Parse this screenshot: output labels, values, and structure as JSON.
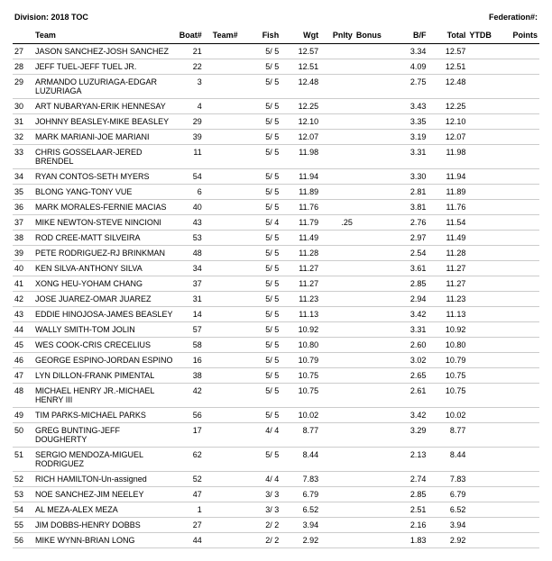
{
  "header": {
    "division_label": "Division:",
    "division_value": "2018 TOC",
    "federation_label": "Federation#:"
  },
  "columns": [
    "",
    "Team",
    "Boat#",
    "Team#",
    "Fish",
    "Wgt",
    "Pnlty",
    "Bonus",
    "B/F",
    "Total",
    "YTDB",
    "Points"
  ],
  "rows": [
    {
      "rank": "27",
      "team": "JASON SANCHEZ-JOSH SANCHEZ",
      "boat": "21",
      "teamn": "",
      "fish": "5/ 5",
      "wgt": "12.57",
      "pnlty": "",
      "bonus": "",
      "bf": "3.34",
      "total": "12.57",
      "ytdb": "",
      "pts": ""
    },
    {
      "rank": "28",
      "team": "JEFF TUEL-JEFF TUEL JR.",
      "boat": "22",
      "teamn": "",
      "fish": "5/ 5",
      "wgt": "12.51",
      "pnlty": "",
      "bonus": "",
      "bf": "4.09",
      "total": "12.51",
      "ytdb": "",
      "pts": ""
    },
    {
      "rank": "29",
      "team": "ARMANDO LUZURIAGA-EDGAR LUZURIAGA",
      "boat": "3",
      "teamn": "",
      "fish": "5/ 5",
      "wgt": "12.48",
      "pnlty": "",
      "bonus": "",
      "bf": "2.75",
      "total": "12.48",
      "ytdb": "",
      "pts": ""
    },
    {
      "rank": "30",
      "team": "ART NUBARYAN-ERIK HENNESAY",
      "boat": "4",
      "teamn": "",
      "fish": "5/ 5",
      "wgt": "12.25",
      "pnlty": "",
      "bonus": "",
      "bf": "3.43",
      "total": "12.25",
      "ytdb": "",
      "pts": ""
    },
    {
      "rank": "31",
      "team": "JOHNNY BEASLEY-MIKE BEASLEY",
      "boat": "29",
      "teamn": "",
      "fish": "5/ 5",
      "wgt": "12.10",
      "pnlty": "",
      "bonus": "",
      "bf": "3.35",
      "total": "12.10",
      "ytdb": "",
      "pts": ""
    },
    {
      "rank": "32",
      "team": "MARK MARIANI-JOE MARIANI",
      "boat": "39",
      "teamn": "",
      "fish": "5/ 5",
      "wgt": "12.07",
      "pnlty": "",
      "bonus": "",
      "bf": "3.19",
      "total": "12.07",
      "ytdb": "",
      "pts": ""
    },
    {
      "rank": "33",
      "team": "CHRIS GOSSELAAR-JERED BRENDEL",
      "boat": "11",
      "teamn": "",
      "fish": "5/ 5",
      "wgt": "11.98",
      "pnlty": "",
      "bonus": "",
      "bf": "3.31",
      "total": "11.98",
      "ytdb": "",
      "pts": ""
    },
    {
      "rank": "34",
      "team": "RYAN CONTOS-SETH MYERS",
      "boat": "54",
      "teamn": "",
      "fish": "5/ 5",
      "wgt": "11.94",
      "pnlty": "",
      "bonus": "",
      "bf": "3.30",
      "total": "11.94",
      "ytdb": "",
      "pts": ""
    },
    {
      "rank": "35",
      "team": "BLONG YANG-TONY VUE",
      "boat": "6",
      "teamn": "",
      "fish": "5/ 5",
      "wgt": "11.89",
      "pnlty": "",
      "bonus": "",
      "bf": "2.81",
      "total": "11.89",
      "ytdb": "",
      "pts": ""
    },
    {
      "rank": "36",
      "team": "MARK MORALES-FERNIE MACIAS",
      "boat": "40",
      "teamn": "",
      "fish": "5/ 5",
      "wgt": "11.76",
      "pnlty": "",
      "bonus": "",
      "bf": "3.81",
      "total": "11.76",
      "ytdb": "",
      "pts": ""
    },
    {
      "rank": "37",
      "team": "MIKE NEWTON-STEVE NINCIONI",
      "boat": "43",
      "teamn": "",
      "fish": "5/ 4",
      "wgt": "11.79",
      "pnlty": ".25",
      "bonus": "",
      "bf": "2.76",
      "total": "11.54",
      "ytdb": "",
      "pts": ""
    },
    {
      "rank": "38",
      "team": "ROD CREE-MATT SILVEIRA",
      "boat": "53",
      "teamn": "",
      "fish": "5/ 5",
      "wgt": "11.49",
      "pnlty": "",
      "bonus": "",
      "bf": "2.97",
      "total": "11.49",
      "ytdb": "",
      "pts": ""
    },
    {
      "rank": "39",
      "team": "PETE RODRIGUEZ-RJ BRINKMAN",
      "boat": "48",
      "teamn": "",
      "fish": "5/ 5",
      "wgt": "11.28",
      "pnlty": "",
      "bonus": "",
      "bf": "2.54",
      "total": "11.28",
      "ytdb": "",
      "pts": ""
    },
    {
      "rank": "40",
      "team": "KEN SILVA-ANTHONY SILVA",
      "boat": "34",
      "teamn": "",
      "fish": "5/ 5",
      "wgt": "11.27",
      "pnlty": "",
      "bonus": "",
      "bf": "3.61",
      "total": "11.27",
      "ytdb": "",
      "pts": ""
    },
    {
      "rank": "41",
      "team": "XONG HEU-YOHAM CHANG",
      "boat": "37",
      "teamn": "",
      "fish": "5/ 5",
      "wgt": "11.27",
      "pnlty": "",
      "bonus": "",
      "bf": "2.85",
      "total": "11.27",
      "ytdb": "",
      "pts": ""
    },
    {
      "rank": "42",
      "team": "JOSE JUAREZ-OMAR JUAREZ",
      "boat": "31",
      "teamn": "",
      "fish": "5/ 5",
      "wgt": "11.23",
      "pnlty": "",
      "bonus": "",
      "bf": "2.94",
      "total": "11.23",
      "ytdb": "",
      "pts": ""
    },
    {
      "rank": "43",
      "team": "EDDIE HINOJOSA-JAMES BEASLEY",
      "boat": "14",
      "teamn": "",
      "fish": "5/ 5",
      "wgt": "11.13",
      "pnlty": "",
      "bonus": "",
      "bf": "3.42",
      "total": "11.13",
      "ytdb": "",
      "pts": ""
    },
    {
      "rank": "44",
      "team": "WALLY SMITH-TOM JOLIN",
      "boat": "57",
      "teamn": "",
      "fish": "5/ 5",
      "wgt": "10.92",
      "pnlty": "",
      "bonus": "",
      "bf": "3.31",
      "total": "10.92",
      "ytdb": "",
      "pts": ""
    },
    {
      "rank": "45",
      "team": "WES COOK-CRIS CRECELIUS",
      "boat": "58",
      "teamn": "",
      "fish": "5/ 5",
      "wgt": "10.80",
      "pnlty": "",
      "bonus": "",
      "bf": "2.60",
      "total": "10.80",
      "ytdb": "",
      "pts": ""
    },
    {
      "rank": "46",
      "team": "GEORGE ESPINO-JORDAN ESPINO",
      "boat": "16",
      "teamn": "",
      "fish": "5/ 5",
      "wgt": "10.79",
      "pnlty": "",
      "bonus": "",
      "bf": "3.02",
      "total": "10.79",
      "ytdb": "",
      "pts": ""
    },
    {
      "rank": "47",
      "team": "LYN DILLON-FRANK PIMENTAL",
      "boat": "38",
      "teamn": "",
      "fish": "5/ 5",
      "wgt": "10.75",
      "pnlty": "",
      "bonus": "",
      "bf": "2.65",
      "total": "10.75",
      "ytdb": "",
      "pts": ""
    },
    {
      "rank": "48",
      "team": "MICHAEL HENRY JR.-MICHAEL HENRY III",
      "boat": "42",
      "teamn": "",
      "fish": "5/ 5",
      "wgt": "10.75",
      "pnlty": "",
      "bonus": "",
      "bf": "2.61",
      "total": "10.75",
      "ytdb": "",
      "pts": ""
    },
    {
      "rank": "49",
      "team": "TIM PARKS-MICHAEL PARKS",
      "boat": "56",
      "teamn": "",
      "fish": "5/ 5",
      "wgt": "10.02",
      "pnlty": "",
      "bonus": "",
      "bf": "3.42",
      "total": "10.02",
      "ytdb": "",
      "pts": ""
    },
    {
      "rank": "50",
      "team": "GREG BUNTING-JEFF DOUGHERTY",
      "boat": "17",
      "teamn": "",
      "fish": "4/ 4",
      "wgt": "8.77",
      "pnlty": "",
      "bonus": "",
      "bf": "3.29",
      "total": "8.77",
      "ytdb": "",
      "pts": ""
    },
    {
      "rank": "51",
      "team": "SERGIO MENDOZA-MIGUEL RODRIGUEZ",
      "boat": "62",
      "teamn": "",
      "fish": "5/ 5",
      "wgt": "8.44",
      "pnlty": "",
      "bonus": "",
      "bf": "2.13",
      "total": "8.44",
      "ytdb": "",
      "pts": ""
    },
    {
      "rank": "52",
      "team": "RICH HAMILTON-Un-assigned",
      "boat": "52",
      "teamn": "",
      "fish": "4/ 4",
      "wgt": "7.83",
      "pnlty": "",
      "bonus": "",
      "bf": "2.74",
      "total": "7.83",
      "ytdb": "",
      "pts": ""
    },
    {
      "rank": "53",
      "team": "NOE SANCHEZ-JIM NEELEY",
      "boat": "47",
      "teamn": "",
      "fish": "3/ 3",
      "wgt": "6.79",
      "pnlty": "",
      "bonus": "",
      "bf": "2.85",
      "total": "6.79",
      "ytdb": "",
      "pts": ""
    },
    {
      "rank": "54",
      "team": "AL MEZA-ALEX MEZA",
      "boat": "1",
      "teamn": "",
      "fish": "3/ 3",
      "wgt": "6.52",
      "pnlty": "",
      "bonus": "",
      "bf": "2.51",
      "total": "6.52",
      "ytdb": "",
      "pts": ""
    },
    {
      "rank": "55",
      "team": "JIM DOBBS-HENRY DOBBS",
      "boat": "27",
      "teamn": "",
      "fish": "2/ 2",
      "wgt": "3.94",
      "pnlty": "",
      "bonus": "",
      "bf": "2.16",
      "total": "3.94",
      "ytdb": "",
      "pts": ""
    },
    {
      "rank": "56",
      "team": "MIKE WYNN-BRIAN LONG",
      "boat": "44",
      "teamn": "",
      "fish": "2/ 2",
      "wgt": "2.92",
      "pnlty": "",
      "bonus": "",
      "bf": "1.83",
      "total": "2.92",
      "ytdb": "",
      "pts": ""
    }
  ]
}
